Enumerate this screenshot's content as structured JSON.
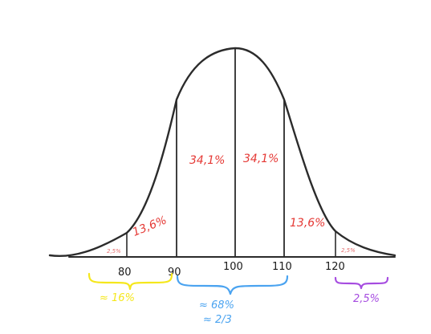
{
  "ticks": [
    "80",
    "90",
    "100",
    "110",
    "120"
  ],
  "percentages": {
    "left_tail": "2,5%",
    "left_mid": "13,6%",
    "left_center": "34,1%",
    "right_center": "34,1%",
    "right_mid": "13,6%",
    "right_tail": "2,5%"
  },
  "summaries": {
    "left": "≈ 16%",
    "center_line1": "≈ 68%",
    "center_line2": "≈ 2/3",
    "right": "2,5%"
  },
  "colors": {
    "curve": "#2b2b2b",
    "percent_red": "#e53935",
    "percent_faint": "#e57373",
    "brace_left": "#f5e71c",
    "brace_center": "#4aa3f0",
    "brace_right": "#a64ce0"
  }
}
